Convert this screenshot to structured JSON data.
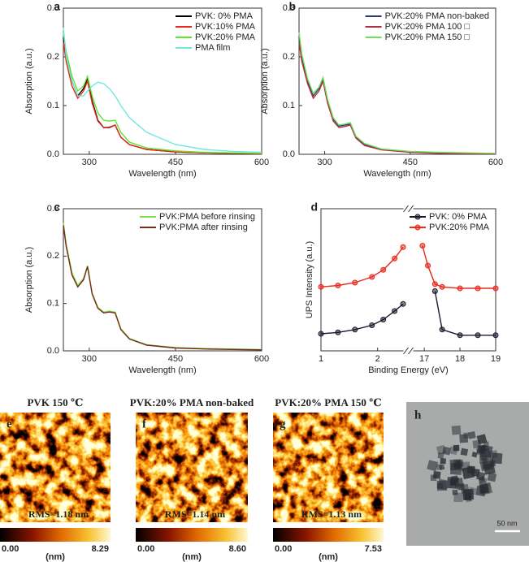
{
  "chart_data": [
    {
      "type": "line",
      "label": "a",
      "xlabel": "Wavelength (nm)",
      "ylabel": "Absorption (a.u.)",
      "x": [
        255,
        260,
        270,
        280,
        290,
        297,
        305,
        315,
        325,
        335,
        345,
        355,
        370,
        400,
        450,
        500,
        550,
        600
      ],
      "series": [
        {
          "name": "PVK:  0% PMA",
          "color": "#000000",
          "values": [
            0.24,
            0.2,
            0.15,
            0.12,
            0.135,
            0.155,
            0.11,
            0.07,
            0.055,
            0.055,
            0.06,
            0.035,
            0.02,
            0.01,
            0.005,
            0.003,
            0.002,
            0.001
          ]
        },
        {
          "name": "PVK:10% PMA",
          "color": "#e8291c",
          "values": [
            0.23,
            0.19,
            0.14,
            0.115,
            0.13,
            0.15,
            0.105,
            0.068,
            0.055,
            0.056,
            0.06,
            0.035,
            0.02,
            0.01,
            0.005,
            0.003,
            0.002,
            0.001
          ]
        },
        {
          "name": "PVK:20% PMA",
          "color": "#5ee62e",
          "values": [
            0.25,
            0.21,
            0.16,
            0.13,
            0.14,
            0.16,
            0.12,
            0.085,
            0.07,
            0.068,
            0.07,
            0.045,
            0.025,
            0.013,
            0.007,
            0.004,
            0.003,
            0.002
          ]
        },
        {
          "name": "PMA film",
          "color": "#6fe8e0",
          "values": [
            0.26,
            0.2,
            0.15,
            0.12,
            0.12,
            0.13,
            0.14,
            0.148,
            0.145,
            0.135,
            0.12,
            0.1,
            0.075,
            0.045,
            0.02,
            0.01,
            0.006,
            0.004
          ]
        }
      ],
      "xlim": [
        255,
        600
      ],
      "xticks": [
        300,
        450,
        600
      ],
      "ylim": [
        0,
        0.3
      ],
      "yticks": [
        {
          "value": 0,
          "label": "0.0"
        },
        0.1,
        0.2,
        0.3
      ],
      "legend": "upper right"
    },
    {
      "type": "line",
      "label": "b",
      "xlabel": "Wavelength (nm)",
      "ylabel": "Absorption (a.u.)",
      "x": [
        255,
        260,
        270,
        280,
        290,
        297,
        305,
        315,
        325,
        335,
        345,
        355,
        370,
        400,
        450,
        500,
        550,
        600
      ],
      "series": [
        {
          "name": "PVK:20% PMA non-baked",
          "color": "#2b3a7a",
          "values": [
            0.24,
            0.2,
            0.15,
            0.12,
            0.135,
            0.155,
            0.11,
            0.072,
            0.058,
            0.06,
            0.062,
            0.035,
            0.02,
            0.01,
            0.005,
            0.003,
            0.002,
            0.001
          ]
        },
        {
          "name": "PVK:20% PMA 100 □",
          "color": "#b03040",
          "values": [
            0.23,
            0.19,
            0.145,
            0.115,
            0.13,
            0.15,
            0.105,
            0.068,
            0.055,
            0.057,
            0.06,
            0.033,
            0.018,
            0.009,
            0.004,
            0.002,
            0.001,
            0.001
          ]
        },
        {
          "name": "PVK:20% PMA 150 □",
          "color": "#6ee05a",
          "values": [
            0.25,
            0.205,
            0.155,
            0.125,
            0.138,
            0.158,
            0.113,
            0.075,
            0.06,
            0.062,
            0.065,
            0.037,
            0.022,
            0.011,
            0.006,
            0.004,
            0.003,
            0.002
          ]
        }
      ],
      "xlim": [
        255,
        600
      ],
      "xticks": [
        300,
        450,
        600
      ],
      "ylim": [
        0,
        0.3
      ],
      "yticks": [
        {
          "value": 0,
          "label": "0.0"
        },
        0.1,
        0.2,
        0.3
      ],
      "legend": "upper right"
    },
    {
      "type": "line",
      "label": "c",
      "xlabel": "Wavelength (nm)",
      "ylabel": "Absorption (a.u.)",
      "x": [
        255,
        260,
        270,
        280,
        290,
        297,
        305,
        315,
        325,
        335,
        345,
        355,
        370,
        400,
        450,
        500,
        550,
        600
      ],
      "series": [
        {
          "name": "PVK:PMA before rinsing",
          "color": "#7ee04a",
          "values": [
            0.27,
            0.225,
            0.165,
            0.138,
            0.153,
            0.18,
            0.122,
            0.092,
            0.082,
            0.084,
            0.082,
            0.047,
            0.026,
            0.013,
            0.007,
            0.005,
            0.004,
            0.003
          ]
        },
        {
          "name": "PVK:PMA after rinsing",
          "color": "#7a2a1a",
          "values": [
            0.265,
            0.22,
            0.16,
            0.135,
            0.15,
            0.178,
            0.12,
            0.09,
            0.08,
            0.082,
            0.08,
            0.045,
            0.025,
            0.012,
            0.006,
            0.004,
            0.003,
            0.002
          ]
        }
      ],
      "xlim": [
        255,
        600
      ],
      "xticks": [
        300,
        450,
        600
      ],
      "ylim": [
        0,
        0.3
      ],
      "yticks": [
        {
          "value": 0,
          "label": "0.0"
        },
        0.1,
        0.2,
        0.3
      ],
      "legend": "upper right"
    },
    {
      "type": "line",
      "label": "d",
      "xlabel": "Binding Energy (eV)",
      "ylabel": "UPS Intensity (a.u.)",
      "x": [
        1,
        1.3,
        1.6,
        1.9,
        2.1,
        2.3,
        2.45,
        16.95,
        17.1,
        17.3,
        17.5,
        18,
        18.5,
        19
      ],
      "series": [
        {
          "name": "PVK:  0% PMA",
          "color": "#1a1a2e",
          "values": [
            0.12,
            0.13,
            0.15,
            0.18,
            0.22,
            0.28,
            0.33,
            null,
            null,
            0.42,
            0.15,
            0.11,
            0.11,
            0.11
          ]
        },
        {
          "name": "PVK:20% PMA",
          "color": "#e8291c",
          "values": [
            0.45,
            0.46,
            0.48,
            0.52,
            0.57,
            0.65,
            0.73,
            0.74,
            0.6,
            0.47,
            0.45,
            0.44,
            0.44,
            0.44
          ]
        }
      ],
      "xlim": [
        1,
        19
      ],
      "xticks": [
        1,
        2,
        17,
        18,
        19
      ],
      "xbreak": [
        2.45,
        16.7
      ],
      "ylim": [
        0,
        1
      ],
      "markers": true,
      "legend": "upper right"
    }
  ],
  "afm_images": [
    {
      "label": "e",
      "title": "PVK 150 ℃",
      "rms": "RMS=1.18 nm",
      "scale_min": "0.00",
      "scale_max": "8.29",
      "scale_unit": "(nm)"
    },
    {
      "label": "f",
      "title": "PVK:20% PMA non-baked",
      "rms": "RMS=1.14 nm",
      "scale_min": "0.00",
      "scale_max": "8.60",
      "scale_unit": "(nm)"
    },
    {
      "label": "g",
      "title": "PVK:20% PMA 150 ℃",
      "rms": "RMS=1.13 nm",
      "scale_min": "0.00",
      "scale_max": "7.53",
      "scale_unit": "(nm)"
    }
  ],
  "tem_image": {
    "label": "h",
    "scale_bar": "50 nm"
  }
}
